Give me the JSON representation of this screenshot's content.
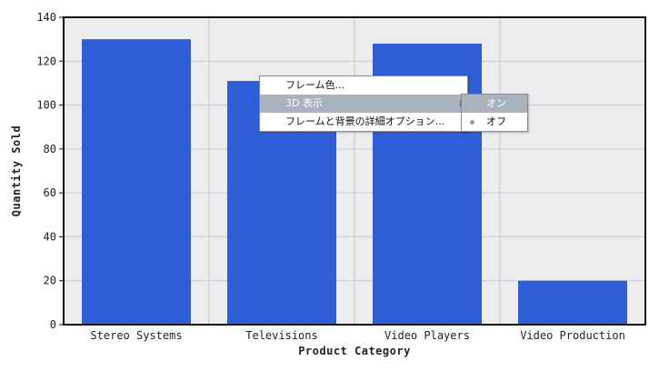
{
  "chart_data": {
    "type": "bar",
    "categories": [
      "Stereo Systems",
      "Televisions",
      "Video Players",
      "Video Production"
    ],
    "values": [
      130,
      111,
      128,
      20
    ],
    "xlabel": "Product Category",
    "ylabel": "Quantity Sold",
    "ylim": [
      0,
      140
    ],
    "yticks": [
      0,
      20,
      40,
      60,
      80,
      100,
      120,
      140
    ],
    "grid": true,
    "bar_color": "#2f5fd8",
    "plot_background": "#ededf0"
  },
  "context_menu": {
    "items": [
      {
        "label": "フレーム色..."
      },
      {
        "label": "3D 表示",
        "has_submenu": true
      },
      {
        "label": "フレームと背景の詳細オプション..."
      }
    ],
    "submenu": [
      {
        "label": "オン"
      },
      {
        "label": "オフ"
      }
    ]
  }
}
